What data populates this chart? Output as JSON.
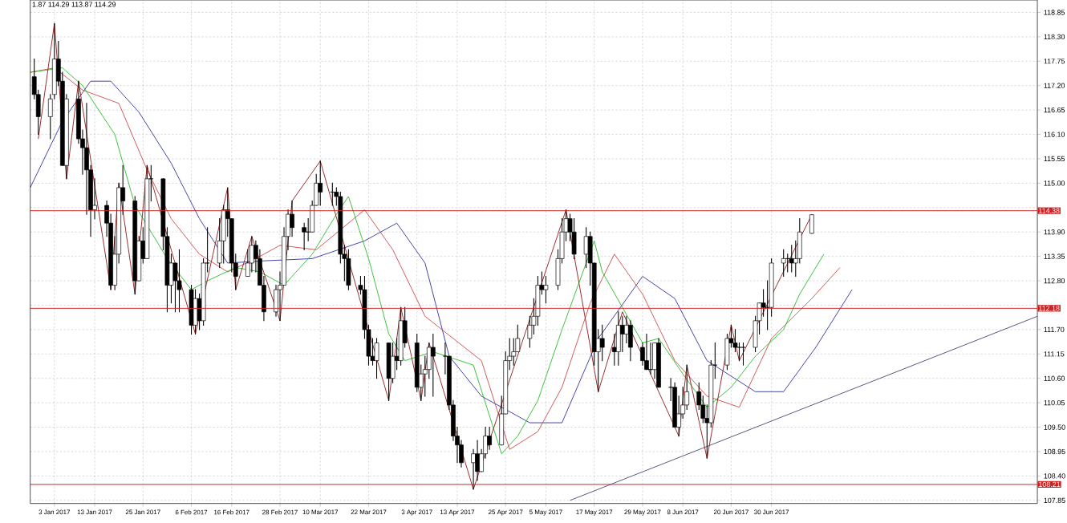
{
  "chart_data": {
    "type": "candlestick",
    "annotations": [
      "1.87 114.29 113.87 114.29"
    ],
    "grid": true,
    "xlim": [
      "2016-12-28",
      "2017-09-04"
    ],
    "ylim": [
      107.78,
      119.13
    ],
    "xticks": [
      {
        "value": "2017-01-03",
        "label": "3 Jan 2017"
      },
      {
        "value": "2017-01-13",
        "label": "13 Jan 2017"
      },
      {
        "value": "2017-01-25",
        "label": "25 Jan 2017"
      },
      {
        "value": "2017-02-06",
        "label": "6 Feb 2017"
      },
      {
        "value": "2017-02-16",
        "label": "16 Feb 2017"
      },
      {
        "value": "2017-02-28",
        "label": "28 Feb 2017"
      },
      {
        "value": "2017-03-10",
        "label": "10 Mar 2017"
      },
      {
        "value": "2017-03-22",
        "label": "22 Mar 2017"
      },
      {
        "value": "2017-04-03",
        "label": "3 Apr 2017"
      },
      {
        "value": "2017-04-13",
        "label": "13 Apr 2017"
      },
      {
        "value": "2017-04-25",
        "label": "25 Apr 2017"
      },
      {
        "value": "2017-05-05",
        "label": "5 May 2017"
      },
      {
        "value": "2017-05-17",
        "label": "17 May 2017"
      },
      {
        "value": "2017-05-29",
        "label": "29 May 2017"
      },
      {
        "value": "2017-06-08",
        "label": "8 Jun 2017"
      },
      {
        "value": "2017-06-20",
        "label": "20 Jun 2017"
      },
      {
        "value": "2017-06-30",
        "label": "30 Jun 2017"
      }
    ],
    "yticks": [
      {
        "value": 107.85,
        "label": "107.85"
      },
      {
        "value": 108.4,
        "label": "108.40"
      },
      {
        "value": 108.95,
        "label": "108.95"
      },
      {
        "value": 109.5,
        "label": "109.50"
      },
      {
        "value": 110.05,
        "label": "110.05"
      },
      {
        "value": 110.6,
        "label": "110.60"
      },
      {
        "value": 111.15,
        "label": "111.15"
      },
      {
        "value": 111.7,
        "label": "111.70"
      },
      {
        "value": 112.25,
        "label": null
      },
      {
        "value": 112.8,
        "label": "112.80"
      },
      {
        "value": 113.35,
        "label": "113.35"
      },
      {
        "value": 113.9,
        "label": "113.90"
      },
      {
        "value": 114.45,
        "label": null
      },
      {
        "value": 115.0,
        "label": "115.00"
      },
      {
        "value": 115.55,
        "label": "115.55"
      },
      {
        "value": 116.1,
        "label": "116.10"
      },
      {
        "value": 116.65,
        "label": "116.65"
      },
      {
        "value": 117.2,
        "label": "117.20"
      },
      {
        "value": 117.75,
        "label": "117.75"
      },
      {
        "value": 118.3,
        "label": "118.30"
      },
      {
        "value": 118.85,
        "label": "118.85"
      }
    ],
    "ref_lines": [
      {
        "axis": "y",
        "value": 114.38,
        "label": "114.38",
        "color": "#cc2222"
      },
      {
        "axis": "y",
        "value": 112.18,
        "label": "112.18",
        "color": "#cc2222"
      },
      {
        "axis": "y",
        "value": 108.21,
        "label": "108.21",
        "color": "#cc2222"
      }
    ],
    "series": [
      {
        "color": "#000000",
        "x": [
          "2016-12-29",
          "2016-12-30",
          "2017-01-02",
          "2017-01-03",
          "2017-01-04",
          "2017-01-05",
          "2017-01-06",
          "2017-01-09",
          "2017-01-10",
          "2017-01-11",
          "2017-01-12",
          "2017-01-13",
          "2017-01-16",
          "2017-01-17",
          "2017-01-18",
          "2017-01-19",
          "2017-01-20",
          "2017-01-23",
          "2017-01-24",
          "2017-01-25",
          "2017-01-26",
          "2017-01-27",
          "2017-01-30",
          "2017-01-31",
          "2017-02-01",
          "2017-02-02",
          "2017-02-03",
          "2017-02-06",
          "2017-02-07",
          "2017-02-08",
          "2017-02-09",
          "2017-02-10",
          "2017-02-13",
          "2017-02-14",
          "2017-02-15",
          "2017-02-16",
          "2017-02-17",
          "2017-02-20",
          "2017-02-21",
          "2017-02-22",
          "2017-02-23",
          "2017-02-24",
          "2017-02-27",
          "2017-02-28",
          "2017-03-01",
          "2017-03-02",
          "2017-03-03",
          "2017-03-06",
          "2017-03-07",
          "2017-03-08",
          "2017-03-09",
          "2017-03-10",
          "2017-03-13",
          "2017-03-14",
          "2017-03-15",
          "2017-03-16",
          "2017-03-17",
          "2017-03-20",
          "2017-03-21",
          "2017-03-22",
          "2017-03-23",
          "2017-03-24",
          "2017-03-27",
          "2017-03-28",
          "2017-03-29",
          "2017-03-30",
          "2017-03-31",
          "2017-04-03",
          "2017-04-04",
          "2017-04-05",
          "2017-04-06",
          "2017-04-07",
          "2017-04-10",
          "2017-04-11",
          "2017-04-12",
          "2017-04-13",
          "2017-04-14",
          "2017-04-17",
          "2017-04-18",
          "2017-04-19",
          "2017-04-20",
          "2017-04-21",
          "2017-04-24",
          "2017-04-25",
          "2017-04-26",
          "2017-04-27",
          "2017-04-28",
          "2017-05-01",
          "2017-05-02",
          "2017-05-03",
          "2017-05-04",
          "2017-05-05",
          "2017-05-08",
          "2017-05-09",
          "2017-05-10",
          "2017-05-11",
          "2017-05-12",
          "2017-05-15",
          "2017-05-16",
          "2017-05-17",
          "2017-05-18",
          "2017-05-19",
          "2017-05-22",
          "2017-05-23",
          "2017-05-24",
          "2017-05-25",
          "2017-05-26",
          "2017-05-29",
          "2017-05-30",
          "2017-05-31",
          "2017-06-01",
          "2017-06-02",
          "2017-06-05",
          "2017-06-06",
          "2017-06-07",
          "2017-06-08",
          "2017-06-09",
          "2017-06-12",
          "2017-06-13",
          "2017-06-14",
          "2017-06-15",
          "2017-06-16",
          "2017-06-19",
          "2017-06-20",
          "2017-06-21",
          "2017-06-22",
          "2017-06-23",
          "2017-06-26",
          "2017-06-27",
          "2017-06-28",
          "2017-06-29",
          "2017-06-30",
          "2017-07-03",
          "2017-07-04",
          "2017-07-05",
          "2017-07-06",
          "2017-07-07",
          "2017-07-10"
        ],
        "ohlc": [
          [
            117.4,
            117.8,
            116.9,
            117.0
          ],
          [
            117.0,
            117.1,
            116.1,
            116.5
          ],
          [
            116.5,
            117.0,
            116.0,
            116.9
          ],
          [
            117.0,
            118.6,
            116.9,
            117.8
          ],
          [
            117.8,
            118.2,
            117.2,
            117.3
          ],
          [
            117.3,
            117.5,
            115.4,
            115.4
          ],
          [
            115.4,
            117.0,
            115.1,
            116.9
          ],
          [
            116.9,
            117.3,
            115.9,
            116.0
          ],
          [
            116.0,
            116.2,
            115.2,
            115.8
          ],
          [
            115.8,
            116.8,
            114.3,
            115.3
          ],
          [
            115.3,
            115.4,
            113.8,
            114.4
          ],
          [
            114.4,
            115.1,
            114.2,
            114.5
          ],
          [
            114.5,
            114.6,
            113.8,
            114.1
          ],
          [
            114.1,
            114.3,
            112.6,
            112.7
          ],
          [
            112.7,
            113.8,
            112.6,
            113.4
          ],
          [
            113.4,
            115.0,
            113.2,
            114.9
          ],
          [
            114.9,
            115.4,
            114.3,
            114.6
          ],
          [
            114.6,
            114.7,
            112.5,
            112.8
          ],
          [
            112.8,
            113.8,
            112.8,
            113.7
          ],
          [
            113.7,
            114.0,
            113.2,
            113.3
          ],
          [
            113.3,
            115.4,
            113.3,
            115.1
          ],
          [
            115.1,
            115.4,
            114.6,
            115.1
          ],
          [
            115.1,
            115.1,
            113.5,
            113.8
          ],
          [
            113.8,
            114.0,
            112.1,
            112.7
          ],
          [
            112.7,
            113.4,
            112.3,
            113.2
          ],
          [
            113.2,
            113.2,
            112.1,
            112.8
          ],
          [
            112.8,
            113.5,
            112.1,
            112.6
          ],
          [
            112.6,
            112.7,
            111.6,
            111.8
          ],
          [
            111.8,
            112.6,
            111.6,
            112.4
          ],
          [
            112.4,
            112.5,
            111.7,
            111.9
          ],
          [
            111.9,
            113.3,
            111.8,
            113.2
          ],
          [
            113.2,
            114.0,
            113.0,
            113.2
          ],
          [
            113.2,
            114.2,
            113.1,
            113.7
          ],
          [
            113.7,
            114.5,
            113.2,
            114.4
          ],
          [
            114.4,
            114.9,
            113.8,
            114.2
          ],
          [
            114.2,
            114.2,
            113.0,
            113.2
          ],
          [
            113.2,
            113.4,
            112.6,
            112.9
          ],
          [
            112.9,
            113.5,
            112.9,
            113.2
          ],
          [
            113.2,
            113.8,
            113.0,
            113.6
          ],
          [
            113.6,
            113.7,
            113.0,
            113.3
          ],
          [
            113.3,
            113.5,
            112.7,
            112.7
          ],
          [
            112.7,
            112.9,
            111.9,
            112.1
          ],
          [
            112.1,
            112.7,
            112.0,
            112.6
          ],
          [
            112.6,
            113.0,
            111.9,
            112.7
          ],
          [
            112.7,
            114.0,
            112.7,
            113.8
          ],
          [
            113.8,
            114.4,
            113.5,
            114.3
          ],
          [
            114.3,
            114.6,
            113.8,
            114.0
          ],
          [
            114.0,
            114.1,
            113.5,
            113.9
          ],
          [
            113.9,
            114.2,
            113.7,
            113.9
          ],
          [
            113.9,
            114.6,
            113.9,
            114.5
          ],
          [
            114.5,
            115.2,
            114.5,
            115.0
          ],
          [
            115.0,
            115.5,
            114.5,
            114.8
          ],
          [
            114.8,
            115.0,
            114.5,
            114.8
          ],
          [
            114.8,
            114.9,
            114.5,
            114.7
          ],
          [
            114.7,
            114.8,
            113.2,
            113.4
          ],
          [
            113.4,
            113.6,
            112.8,
            113.3
          ],
          [
            113.3,
            113.5,
            112.6,
            112.7
          ],
          [
            112.7,
            112.9,
            112.5,
            112.6
          ],
          [
            112.6,
            112.9,
            111.5,
            111.7
          ],
          [
            111.7,
            111.8,
            110.9,
            111.1
          ],
          [
            111.1,
            111.5,
            110.9,
            111.0
          ],
          [
            111.0,
            111.5,
            110.6,
            111.4
          ],
          [
            111.4,
            111.4,
            110.1,
            110.6
          ],
          [
            110.6,
            111.4,
            110.5,
            111.1
          ],
          [
            111.1,
            111.5,
            110.8,
            111.0
          ],
          [
            111.0,
            112.2,
            110.9,
            111.9
          ],
          [
            111.9,
            112.2,
            111.3,
            111.4
          ],
          [
            111.4,
            111.6,
            110.3,
            110.4
          ],
          [
            110.4,
            110.9,
            110.1,
            110.7
          ],
          [
            110.7,
            111.1,
            110.2,
            110.8
          ],
          [
            110.8,
            111.4,
            110.6,
            111.3
          ],
          [
            111.3,
            111.6,
            110.2,
            111.1
          ],
          [
            111.1,
            111.4,
            110.7,
            111.1
          ],
          [
            111.1,
            111.1,
            109.9,
            110.0
          ],
          [
            110.0,
            110.1,
            109.2,
            109.3
          ],
          [
            109.3,
            109.5,
            108.7,
            109.1
          ],
          [
            109.1,
            109.2,
            108.6,
            108.7
          ],
          [
            108.7,
            109.0,
            108.1,
            108.9
          ],
          [
            108.9,
            109.2,
            108.3,
            108.5
          ],
          [
            108.5,
            109.0,
            108.5,
            108.9
          ],
          [
            108.9,
            109.5,
            108.8,
            109.3
          ],
          [
            109.3,
            109.5,
            109.0,
            109.1
          ],
          [
            109.1,
            110.2,
            109.1,
            109.8
          ],
          [
            109.8,
            111.2,
            109.8,
            111.0
          ],
          [
            111.0,
            111.5,
            110.8,
            111.1
          ],
          [
            111.1,
            111.5,
            110.9,
            111.2
          ],
          [
            111.2,
            111.8,
            111.2,
            111.5
          ],
          [
            111.5,
            112.0,
            111.3,
            111.8
          ],
          [
            111.8,
            112.4,
            111.6,
            112.0
          ],
          [
            112.0,
            112.9,
            111.8,
            112.7
          ],
          [
            112.7,
            113.0,
            112.5,
            112.6
          ],
          [
            112.6,
            112.9,
            112.3,
            112.7
          ],
          [
            112.7,
            113.5,
            112.6,
            113.3
          ],
          [
            113.3,
            114.2,
            113.2,
            113.9
          ],
          [
            113.9,
            114.4,
            113.7,
            114.2
          ],
          [
            114.2,
            114.3,
            113.7,
            113.9
          ],
          [
            113.9,
            114.2,
            113.3,
            113.4
          ],
          [
            113.4,
            114.0,
            113.1,
            113.8
          ],
          [
            113.8,
            113.9,
            112.7,
            113.2
          ],
          [
            113.2,
            113.2,
            110.9,
            111.2
          ],
          [
            111.2,
            111.7,
            110.3,
            111.5
          ],
          [
            111.5,
            111.8,
            111.0,
            111.3
          ],
          [
            111.3,
            111.6,
            110.9,
            111.2
          ],
          [
            111.2,
            112.1,
            110.9,
            111.8
          ],
          [
            111.8,
            112.0,
            111.2,
            111.6
          ],
          [
            111.6,
            112.0,
            111.4,
            111.8
          ],
          [
            111.8,
            111.9,
            111.0,
            111.3
          ],
          [
            111.3,
            111.4,
            110.9,
            111.0
          ],
          [
            111.0,
            111.6,
            110.8,
            110.8
          ],
          [
            110.8,
            111.4,
            110.7,
            110.8
          ],
          [
            110.8,
            111.4,
            110.6,
            111.4
          ],
          [
            111.4,
            111.5,
            110.4,
            110.4
          ],
          [
            110.4,
            110.6,
            110.1,
            110.4
          ],
          [
            110.4,
            110.5,
            109.5,
            109.5
          ],
          [
            109.5,
            110.2,
            109.3,
            109.8
          ],
          [
            109.8,
            110.4,
            109.7,
            110.0
          ],
          [
            110.0,
            110.9,
            109.9,
            110.3
          ],
          [
            110.3,
            110.5,
            109.9,
            110.0
          ],
          [
            110.0,
            110.2,
            109.6,
            109.7
          ],
          [
            109.7,
            110.0,
            108.8,
            109.6
          ],
          [
            109.6,
            111.0,
            109.5,
            110.9
          ],
          [
            110.9,
            111.4,
            110.6,
            110.9
          ],
          [
            110.9,
            111.6,
            110.8,
            111.5
          ],
          [
            111.5,
            111.8,
            111.3,
            111.4
          ],
          [
            111.4,
            111.7,
            111.2,
            111.3
          ],
          [
            111.3,
            111.4,
            111.0,
            111.3
          ],
          [
            111.3,
            111.4,
            110.9,
            111.3
          ],
          [
            111.3,
            112.0,
            111.2,
            111.9
          ],
          [
            111.9,
            112.3,
            111.6,
            112.3
          ],
          [
            112.3,
            112.6,
            112.0,
            112.2
          ],
          [
            112.2,
            112.8,
            111.7,
            112.2
          ],
          [
            112.2,
            113.3,
            112.0,
            113.2
          ],
          [
            113.2,
            113.5,
            112.9,
            113.3
          ],
          [
            113.3,
            113.4,
            113.0,
            113.3
          ],
          [
            113.3,
            113.6,
            113.0,
            113.2
          ],
          [
            113.2,
            113.7,
            112.9,
            113.3
          ],
          [
            113.3,
            114.2,
            113.2,
            113.9
          ],
          [
            113.87,
            114.29,
            113.87,
            114.29
          ]
        ]
      },
      {
        "type": "line",
        "color": "#2a2aa0",
        "x": [
          "2016-12-28",
          "2017-01-05",
          "2017-01-12",
          "2017-01-17",
          "2017-01-24",
          "2017-02-01",
          "2017-02-08",
          "2017-02-15",
          "2017-02-24",
          "2017-03-08",
          "2017-03-21",
          "2017-03-29",
          "2017-04-05",
          "2017-04-11",
          "2017-04-19",
          "2017-05-01",
          "2017-05-09",
          "2017-05-18",
          "2017-05-29",
          "2017-06-06",
          "2017-06-14",
          "2017-06-26",
          "2017-07-03",
          "2017-07-11",
          "2017-07-20"
        ],
        "values": [
          114.9,
          116.4,
          117.3,
          117.3,
          116.6,
          115.45,
          114.2,
          113.2,
          113.25,
          113.3,
          113.7,
          114.1,
          113.2,
          111.1,
          110.2,
          109.6,
          109.6,
          111.5,
          112.9,
          112.4,
          111.0,
          110.3,
          110.3,
          111.3,
          112.6
        ]
      },
      {
        "type": "line",
        "color": "#cc4444",
        "x": [
          "2016-12-28",
          "2017-01-03",
          "2017-01-10",
          "2017-01-19",
          "2017-01-26",
          "2017-02-01",
          "2017-02-08",
          "2017-02-15",
          "2017-02-22",
          "2017-02-28",
          "2017-03-09",
          "2017-03-21",
          "2017-03-28",
          "2017-04-05",
          "2017-04-19",
          "2017-04-26",
          "2017-05-03",
          "2017-05-09",
          "2017-05-16",
          "2017-05-22",
          "2017-05-29",
          "2017-06-06",
          "2017-06-14",
          "2017-06-22",
          "2017-06-30",
          "2017-07-10",
          "2017-07-17"
        ],
        "values": [
          117.5,
          117.6,
          117.1,
          116.8,
          115.3,
          114.2,
          113.4,
          113.0,
          113.3,
          113.6,
          113.5,
          114.4,
          113.5,
          112.0,
          111.0,
          109.0,
          109.4,
          110.4,
          112.3,
          113.4,
          112.5,
          111.0,
          110.2,
          109.95,
          111.5,
          112.4,
          113.1
        ]
      },
      {
        "type": "line",
        "color": "#22bb22",
        "x": [
          "2016-12-28",
          "2017-01-05",
          "2017-01-10",
          "2017-01-18",
          "2017-01-23",
          "2017-01-31",
          "2017-02-06",
          "2017-02-10",
          "2017-02-17",
          "2017-02-23",
          "2017-03-01",
          "2017-03-08",
          "2017-03-14",
          "2017-03-17",
          "2017-03-22",
          "2017-03-27",
          "2017-03-31",
          "2017-04-07",
          "2017-04-17",
          "2017-04-24",
          "2017-04-28",
          "2017-05-03",
          "2017-05-09",
          "2017-05-17",
          "2017-05-19",
          "2017-05-24",
          "2017-05-29",
          "2017-06-02",
          "2017-06-08",
          "2017-06-14",
          "2017-06-20",
          "2017-06-26",
          "2017-07-03",
          "2017-07-07",
          "2017-07-13"
        ],
        "values": [
          117.5,
          117.6,
          117.2,
          116.1,
          114.5,
          113.3,
          112.6,
          112.8,
          113.1,
          113.0,
          112.7,
          113.4,
          114.3,
          114.7,
          113.3,
          111.6,
          111.0,
          111.2,
          110.9,
          108.9,
          109.3,
          110.1,
          111.7,
          113.7,
          113.0,
          112.2,
          111.4,
          111.5,
          110.7,
          109.95,
          110.4,
          111.1,
          111.7,
          112.5,
          113.4
        ]
      },
      {
        "type": "line",
        "color": "#8b1010",
        "x": [
          "2016-12-30",
          "2017-01-03",
          "2017-01-06",
          "2017-01-09",
          "2017-01-17",
          "2017-01-19",
          "2017-01-23",
          "2017-01-26",
          "2017-02-07",
          "2017-02-15",
          "2017-02-17",
          "2017-02-21",
          "2017-02-28",
          "2017-03-03",
          "2017-03-10",
          "2017-03-27",
          "2017-03-30",
          "2017-04-04",
          "2017-04-06",
          "2017-04-17",
          "2017-05-10",
          "2017-05-18",
          "2017-05-24",
          "2017-06-07",
          "2017-06-09",
          "2017-06-14",
          "2017-06-20",
          "2017-06-22",
          "2017-07-10"
        ],
        "values": [
          116.0,
          118.6,
          115.1,
          117.3,
          112.6,
          115.0,
          112.5,
          115.4,
          111.6,
          114.9,
          112.6,
          113.8,
          111.9,
          114.6,
          115.5,
          110.1,
          112.2,
          110.1,
          111.4,
          108.1,
          114.4,
          110.3,
          112.1,
          109.3,
          110.9,
          108.8,
          111.8,
          111.0,
          114.29
        ]
      },
      {
        "type": "line",
        "color": "#404070",
        "x": [
          "2017-05-11",
          "2017-09-04"
        ],
        "values": [
          107.85,
          112.0
        ]
      }
    ]
  }
}
